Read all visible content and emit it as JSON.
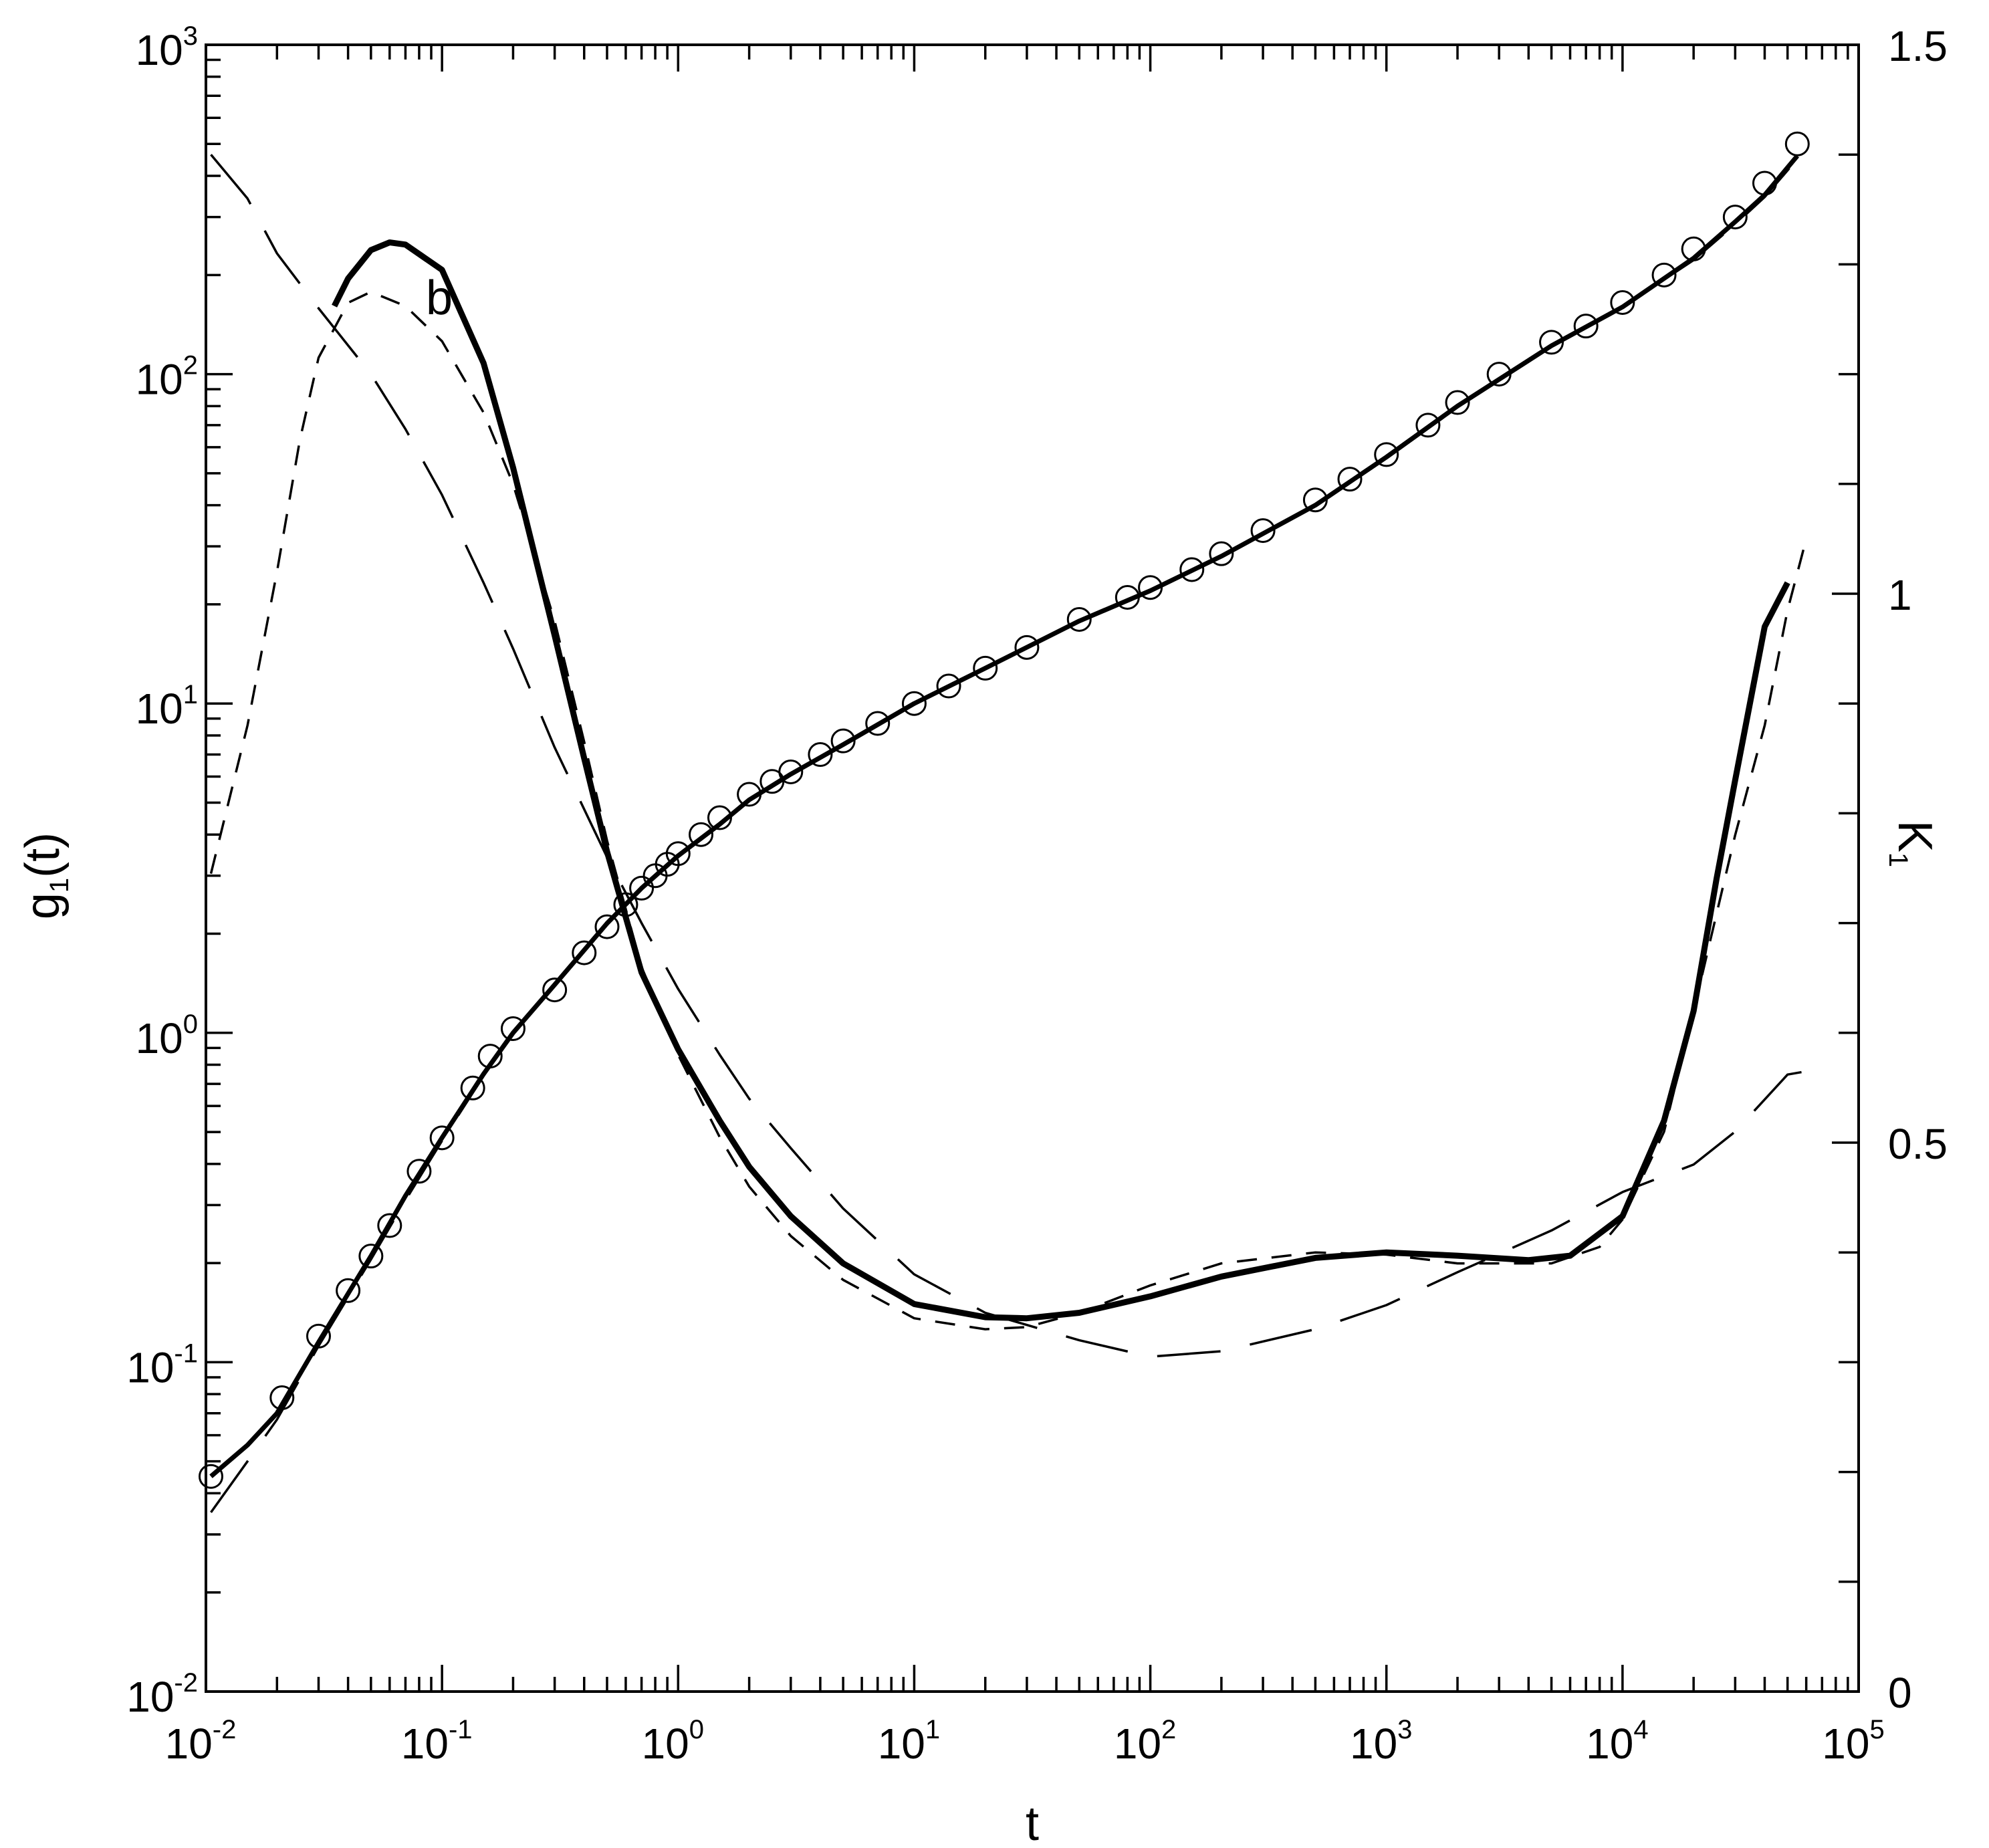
{
  "chart_data": {
    "type": "line",
    "panel_label": "b",
    "xlabel": "t",
    "ylabel_left": {
      "base": "g",
      "sub": "1",
      "tail": "(t)"
    },
    "ylabel_right": {
      "base": "K",
      "sub": "1"
    },
    "x_scale": "log",
    "y_left_scale": "log",
    "y_right_scale": "linear",
    "xlim": [
      0.01,
      100000
    ],
    "ylim_left": [
      0.01,
      1000
    ],
    "ylim_right": [
      0,
      1.5
    ],
    "x_tick_labels": [
      {
        "base": "10",
        "exp": "-2"
      },
      {
        "base": "10",
        "exp": "-1"
      },
      {
        "base": "10",
        "exp": "0"
      },
      {
        "base": "10",
        "exp": "1"
      },
      {
        "base": "10",
        "exp": "2"
      },
      {
        "base": "10",
        "exp": "3"
      },
      {
        "base": "10",
        "exp": "4"
      },
      {
        "base": "10",
        "exp": "5"
      }
    ],
    "y_left_tick_labels": [
      {
        "base": "10",
        "exp": "-2"
      },
      {
        "base": "10",
        "exp": "-1"
      },
      {
        "base": "10",
        "exp": "0"
      },
      {
        "base": "10",
        "exp": "1"
      },
      {
        "base": "10",
        "exp": "2"
      },
      {
        "base": "10",
        "exp": "3"
      }
    ],
    "y_right_tick_labels": [
      "0",
      "0.5",
      "1",
      "1.5"
    ],
    "y_right_ticks": [
      0,
      0.5,
      1,
      1.5
    ],
    "series": [
      {
        "role": "g1 data (circles)",
        "axis": "left",
        "style": "open-circle",
        "x": [
          0.0105,
          0.021,
          0.03,
          0.04,
          0.05,
          0.06,
          0.08,
          0.1,
          0.135,
          0.16,
          0.2,
          0.3,
          0.4,
          0.5,
          0.6,
          0.7,
          0.8,
          0.9,
          1.0,
          1.25,
          1.5,
          2.0,
          2.5,
          3.0,
          4.0,
          5.0,
          7.0,
          10,
          14,
          20,
          30,
          50,
          80,
          100,
          150,
          200,
          300,
          500,
          700,
          1000,
          1500,
          2000,
          3000,
          5000,
          7000,
          10000,
          15000,
          20000,
          30000,
          40000,
          55000
        ],
        "y": [
          0.045,
          0.078,
          0.12,
          0.165,
          0.21,
          0.26,
          0.38,
          0.48,
          0.68,
          0.85,
          1.03,
          1.35,
          1.75,
          2.1,
          2.45,
          2.75,
          3.0,
          3.25,
          3.5,
          4.0,
          4.5,
          5.3,
          5.8,
          6.2,
          7.0,
          7.7,
          8.7,
          10.0,
          11.3,
          12.8,
          14.8,
          18.0,
          21.0,
          22.5,
          25.5,
          28.5,
          33.5,
          41.5,
          48.0,
          57.0,
          70.0,
          82.0,
          100.0,
          125.0,
          140.0,
          165.0,
          200.0,
          240.0,
          300.0,
          380.0,
          500.0
        ]
      },
      {
        "role": "g1 fit (solid)",
        "axis": "left",
        "style": "solid",
        "x": [
          0.0105,
          0.015,
          0.02,
          0.03,
          0.05,
          0.07,
          0.1,
          0.15,
          0.2,
          0.3,
          0.5,
          0.7,
          1.0,
          1.5,
          2.0,
          3.0,
          5.0,
          10,
          20,
          50,
          100,
          200,
          500,
          1000,
          2000,
          5000,
          10000,
          20000,
          30000,
          40000,
          55000
        ],
        "y": [
          0.045,
          0.056,
          0.07,
          0.115,
          0.21,
          0.32,
          0.48,
          0.75,
          1.0,
          1.4,
          2.15,
          2.75,
          3.45,
          4.3,
          5.1,
          6.1,
          7.5,
          10.0,
          12.8,
          17.8,
          22.0,
          28.0,
          40.0,
          56.0,
          80.0,
          122.0,
          160.0,
          225.0,
          290.0,
          350.0,
          460.0
        ]
      },
      {
        "role": "g1 fit (long dash)",
        "axis": "left",
        "style": "long-dash",
        "x": [
          0.0105,
          0.015,
          0.02,
          0.03,
          0.05,
          0.07,
          0.1,
          0.15,
          0.2,
          0.3,
          0.5,
          0.7,
          1.0,
          1.5,
          2.0,
          3.0,
          5.0,
          10,
          20,
          50,
          100,
          200,
          500,
          1000,
          2000,
          5000,
          10000,
          20000,
          30000,
          40000,
          55000
        ],
        "y": [
          0.035,
          0.05,
          0.067,
          0.112,
          0.205,
          0.31,
          0.47,
          0.74,
          1.0,
          1.4,
          2.15,
          2.75,
          3.45,
          4.3,
          5.1,
          6.1,
          7.5,
          10.0,
          12.8,
          17.8,
          22.0,
          28.0,
          40.0,
          56.0,
          80.0,
          122.0,
          160.0,
          222.0,
          285.0,
          345.0,
          450.0
        ]
      },
      {
        "role": "K1 (solid)",
        "axis": "right",
        "style": "solid",
        "x": [
          0.035,
          0.04,
          0.05,
          0.06,
          0.07,
          0.1,
          0.15,
          0.2,
          0.3,
          0.4,
          0.5,
          0.7,
          1.0,
          1.5,
          2.0,
          3.0,
          5.0,
          10,
          20,
          30,
          50,
          100,
          200,
          500,
          1000,
          2000,
          4000,
          6000,
          10000,
          15000,
          20000,
          25000,
          30000,
          40000,
          50000
        ],
        "y": [
          1.262,
          1.287,
          1.313,
          1.32,
          1.318,
          1.295,
          1.21,
          1.115,
          0.962,
          0.85,
          0.765,
          0.655,
          0.585,
          0.52,
          0.478,
          0.433,
          0.39,
          0.353,
          0.341,
          0.34,
          0.345,
          0.36,
          0.378,
          0.395,
          0.4,
          0.397,
          0.393,
          0.397,
          0.433,
          0.52,
          0.62,
          0.74,
          0.83,
          0.97,
          1.01
        ]
      },
      {
        "role": "K1 (short dash)",
        "axis": "right",
        "style": "short-dash",
        "x": [
          0.0105,
          0.015,
          0.02,
          0.025,
          0.03,
          0.04,
          0.05,
          0.07,
          0.1,
          0.15,
          0.2,
          0.3,
          0.4,
          0.5,
          0.7,
          1.0,
          1.5,
          2.0,
          3.0,
          5.0,
          10,
          20,
          30,
          50,
          100,
          200,
          500,
          1000,
          2000,
          5000,
          8000,
          10000,
          15000,
          20000,
          30000,
          40000,
          50000,
          60000
        ],
        "y": [
          0.745,
          0.88,
          1.02,
          1.14,
          1.215,
          1.265,
          1.275,
          1.262,
          1.23,
          1.165,
          1.1,
          0.975,
          0.865,
          0.775,
          0.66,
          0.58,
          0.505,
          0.46,
          0.415,
          0.375,
          0.34,
          0.33,
          0.332,
          0.345,
          0.37,
          0.39,
          0.4,
          0.398,
          0.39,
          0.39,
          0.405,
          0.43,
          0.51,
          0.62,
          0.78,
          0.88,
          0.985,
          1.05
        ]
      },
      {
        "role": "K1 (long dash)",
        "axis": "right",
        "style": "long-dash",
        "x": [
          0.0105,
          0.015,
          0.02,
          0.03,
          0.05,
          0.07,
          0.1,
          0.15,
          0.2,
          0.3,
          0.5,
          0.7,
          1.0,
          1.5,
          2.0,
          3.0,
          5.0,
          10,
          20,
          50,
          100,
          200,
          500,
          1000,
          2000,
          5000,
          10000,
          20000,
          30000,
          50000,
          60000
        ],
        "y": [
          1.4,
          1.36,
          1.31,
          1.26,
          1.2,
          1.15,
          1.09,
          1.01,
          0.95,
          0.86,
          0.76,
          0.7,
          0.64,
          0.58,
          0.54,
          0.495,
          0.44,
          0.38,
          0.345,
          0.32,
          0.305,
          0.31,
          0.33,
          0.352,
          0.382,
          0.42,
          0.455,
          0.48,
          0.51,
          0.562,
          0.565
        ]
      }
    ]
  }
}
